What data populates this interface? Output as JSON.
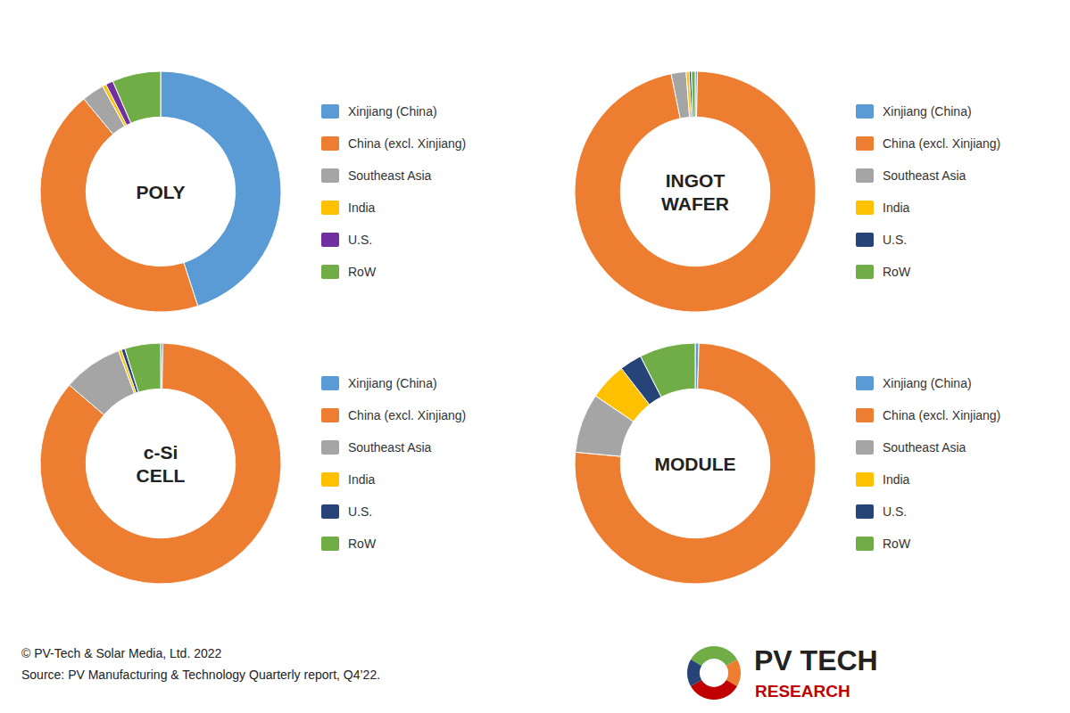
{
  "chart_data": [
    {
      "type": "pie",
      "title": "POLY",
      "categories": [
        "Xinjiang (China)",
        "China (excl. Xinjiang)",
        "Southeast Asia",
        "India",
        "U.S.",
        "RoW"
      ],
      "values": [
        45,
        44,
        3,
        0.5,
        1,
        6.5
      ],
      "colors": [
        "#5B9BD5",
        "#ED7D31",
        "#A5A5A5",
        "#FFC000",
        "#7030A0",
        "#70AD47"
      ],
      "legend": "right"
    },
    {
      "type": "pie",
      "title": "INGOT\nWAFER",
      "categories": [
        "Xinjiang (China)",
        "China (excl. Xinjiang)",
        "Southeast Asia",
        "India",
        "U.S.",
        "RoW"
      ],
      "values": [
        0.3,
        96.5,
        2,
        0.4,
        0.3,
        0.5
      ],
      "colors": [
        "#5B9BD5",
        "#ED7D31",
        "#A5A5A5",
        "#FFC000",
        "#264478",
        "#70AD47"
      ],
      "legend": "right"
    },
    {
      "type": "pie",
      "title": "c-Si\nCELL",
      "categories": [
        "Xinjiang (China)",
        "China (excl. Xinjiang)",
        "Southeast Asia",
        "India",
        "U.S.",
        "RoW"
      ],
      "values": [
        0.3,
        86,
        8,
        0.4,
        0.5,
        4.8
      ],
      "colors": [
        "#5B9BD5",
        "#ED7D31",
        "#A5A5A5",
        "#FFC000",
        "#264478",
        "#70AD47"
      ],
      "legend": "right"
    },
    {
      "type": "pie",
      "title": "MODULE",
      "categories": [
        "Xinjiang (China)",
        "China (excl. Xinjiang)",
        "Southeast Asia",
        "India",
        "U.S.",
        "RoW"
      ],
      "values": [
        0.5,
        76,
        8,
        5,
        3,
        7.5
      ],
      "colors": [
        "#5B9BD5",
        "#ED7D31",
        "#A5A5A5",
        "#FFC000",
        "#264478",
        "#70AD47"
      ],
      "legend": "right",
      "annotations": [
        "© PV-Tech & Solar Media, Ltd. 2022",
        "Source: PV Manufacturing & Technology Quarterly report, Q4’22.",
        "PV TECH",
        "RESEARCH"
      ]
    }
  ]
}
